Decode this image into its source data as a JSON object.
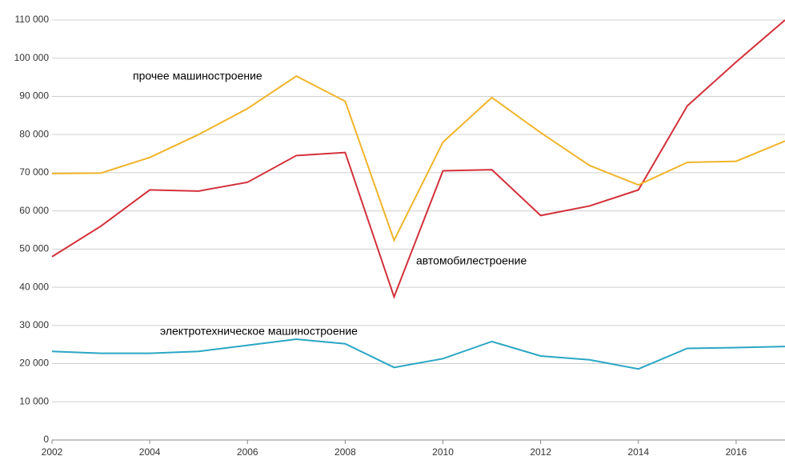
{
  "chart_data": {
    "type": "line",
    "x": [
      2002,
      2003,
      2004,
      2005,
      2006,
      2007,
      2008,
      2009,
      2010,
      2011,
      2012,
      2013,
      2014,
      2015,
      2016,
      2017
    ],
    "series": [
      {
        "name": "автомобилестроение",
        "color": "#d3303a",
        "values": [
          48000,
          56000,
          65500,
          65200,
          67500,
          74500,
          75300,
          37500,
          70500,
          70800,
          58800,
          61300,
          65500,
          87500,
          99000,
          110000
        ]
      },
      {
        "name": "прочее машиностроение",
        "color": "#f0b42a",
        "values": [
          69800,
          69900,
          74000,
          80000,
          86800,
          95300,
          88700,
          52300,
          78000,
          89700,
          80500,
          71900,
          66800,
          72700,
          73000,
          78300
        ]
      },
      {
        "name": "электротехническое машиностроение",
        "color": "#2aa6c4",
        "values": [
          23200,
          22700,
          22700,
          23200,
          24800,
          26400,
          25200,
          19000,
          21300,
          25800,
          22000,
          21000,
          18600,
          24000,
          24200,
          24500
        ]
      }
    ],
    "xlim": [
      2002,
      2017
    ],
    "xticks": [
      2002,
      2004,
      2006,
      2008,
      2010,
      2012,
      2014,
      2016
    ],
    "ylim": [
      0,
      110000
    ],
    "yticks": [
      0,
      {
        "value": 10000,
        "label": "10 000"
      },
      {
        "value": 20000,
        "label": "20 000"
      },
      {
        "value": 30000,
        "label": "30 000"
      },
      {
        "value": 40000,
        "label": "40 000"
      },
      {
        "value": 50000,
        "label": "50 000"
      },
      {
        "value": 60000,
        "label": "60 000"
      },
      {
        "value": 70000,
        "label": "70 000"
      },
      {
        "value": 80000,
        "label": "80 000"
      },
      {
        "value": 90000,
        "label": "90 000"
      },
      {
        "value": 100000,
        "label": "100 000"
      },
      {
        "value": 110000,
        "label": "110 000"
      }
    ],
    "grid": true
  }
}
